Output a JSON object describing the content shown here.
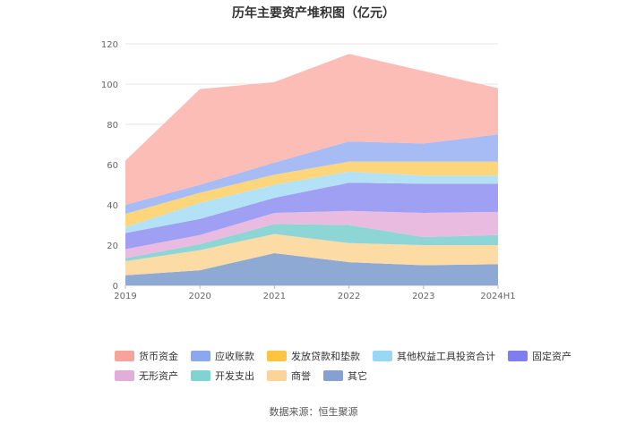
{
  "chart_data": {
    "type": "area",
    "stacked": true,
    "title": "历年主要资产堆积图（亿元）",
    "categories": [
      "2019",
      "2020",
      "2021",
      "2022",
      "2023",
      "2024H1"
    ],
    "ylim": [
      0,
      120
    ],
    "yticks": [
      0,
      20,
      40,
      60,
      80,
      100,
      120
    ],
    "series": [
      {
        "name": "其它",
        "color": "#8fa9d5",
        "values": [
          5.0,
          7.5,
          16.0,
          11.5,
          10.0,
          10.5
        ]
      },
      {
        "name": "商誉",
        "color": "#fcdba5",
        "values": [
          7.0,
          10.0,
          9.5,
          9.5,
          10.0,
          9.5
        ]
      },
      {
        "name": "开发支出",
        "color": "#8ed6d6",
        "values": [
          1.5,
          3.0,
          5.0,
          9.0,
          4.0,
          5.0
        ]
      },
      {
        "name": "无形资产",
        "color": "#e9bbe0",
        "values": [
          4.5,
          4.5,
          5.5,
          7.0,
          12.0,
          11.5
        ]
      },
      {
        "name": "固定资产",
        "color": "#9f9ff3",
        "values": [
          8.0,
          8.0,
          7.5,
          14.0,
          14.5,
          14.0
        ]
      },
      {
        "name": "其他权益工具投资合计",
        "color": "#b3e2f7",
        "values": [
          3.0,
          8.0,
          6.5,
          5.5,
          4.0,
          4.0
        ]
      },
      {
        "name": "发放贷款和垫款",
        "color": "#fdd67c",
        "values": [
          6.5,
          5.0,
          5.0,
          5.0,
          7.0,
          7.0
        ]
      },
      {
        "name": "应收账款",
        "color": "#a7bcf5",
        "values": [
          4.5,
          4.0,
          6.0,
          10.0,
          9.0,
          13.5
        ]
      },
      {
        "name": "货币资金",
        "color": "#fcbdb7",
        "values": [
          22.0,
          47.5,
          40.0,
          43.5,
          36.0,
          23.0
        ]
      }
    ],
    "legend": [
      [
        "货币资金",
        "应收账款",
        "发放贷款和垫款",
        "其他权益工具投资合计",
        "固定资产"
      ],
      [
        "无形资产",
        "开发支出",
        "商誉",
        "其它"
      ]
    ],
    "legend_colors": {
      "货币资金": "#f6a49b",
      "应收账款": "#8ba7f0",
      "发放贷款和垫款": "#fcc43f",
      "其他权益工具投资合计": "#98d8f5",
      "固定资产": "#7e7ef0",
      "无形资产": "#e4acd9",
      "开发支出": "#7fd3d3",
      "商誉": "#fcd49a",
      "其它": "#86a0d2"
    },
    "source": "数据来源：恒生聚源"
  }
}
